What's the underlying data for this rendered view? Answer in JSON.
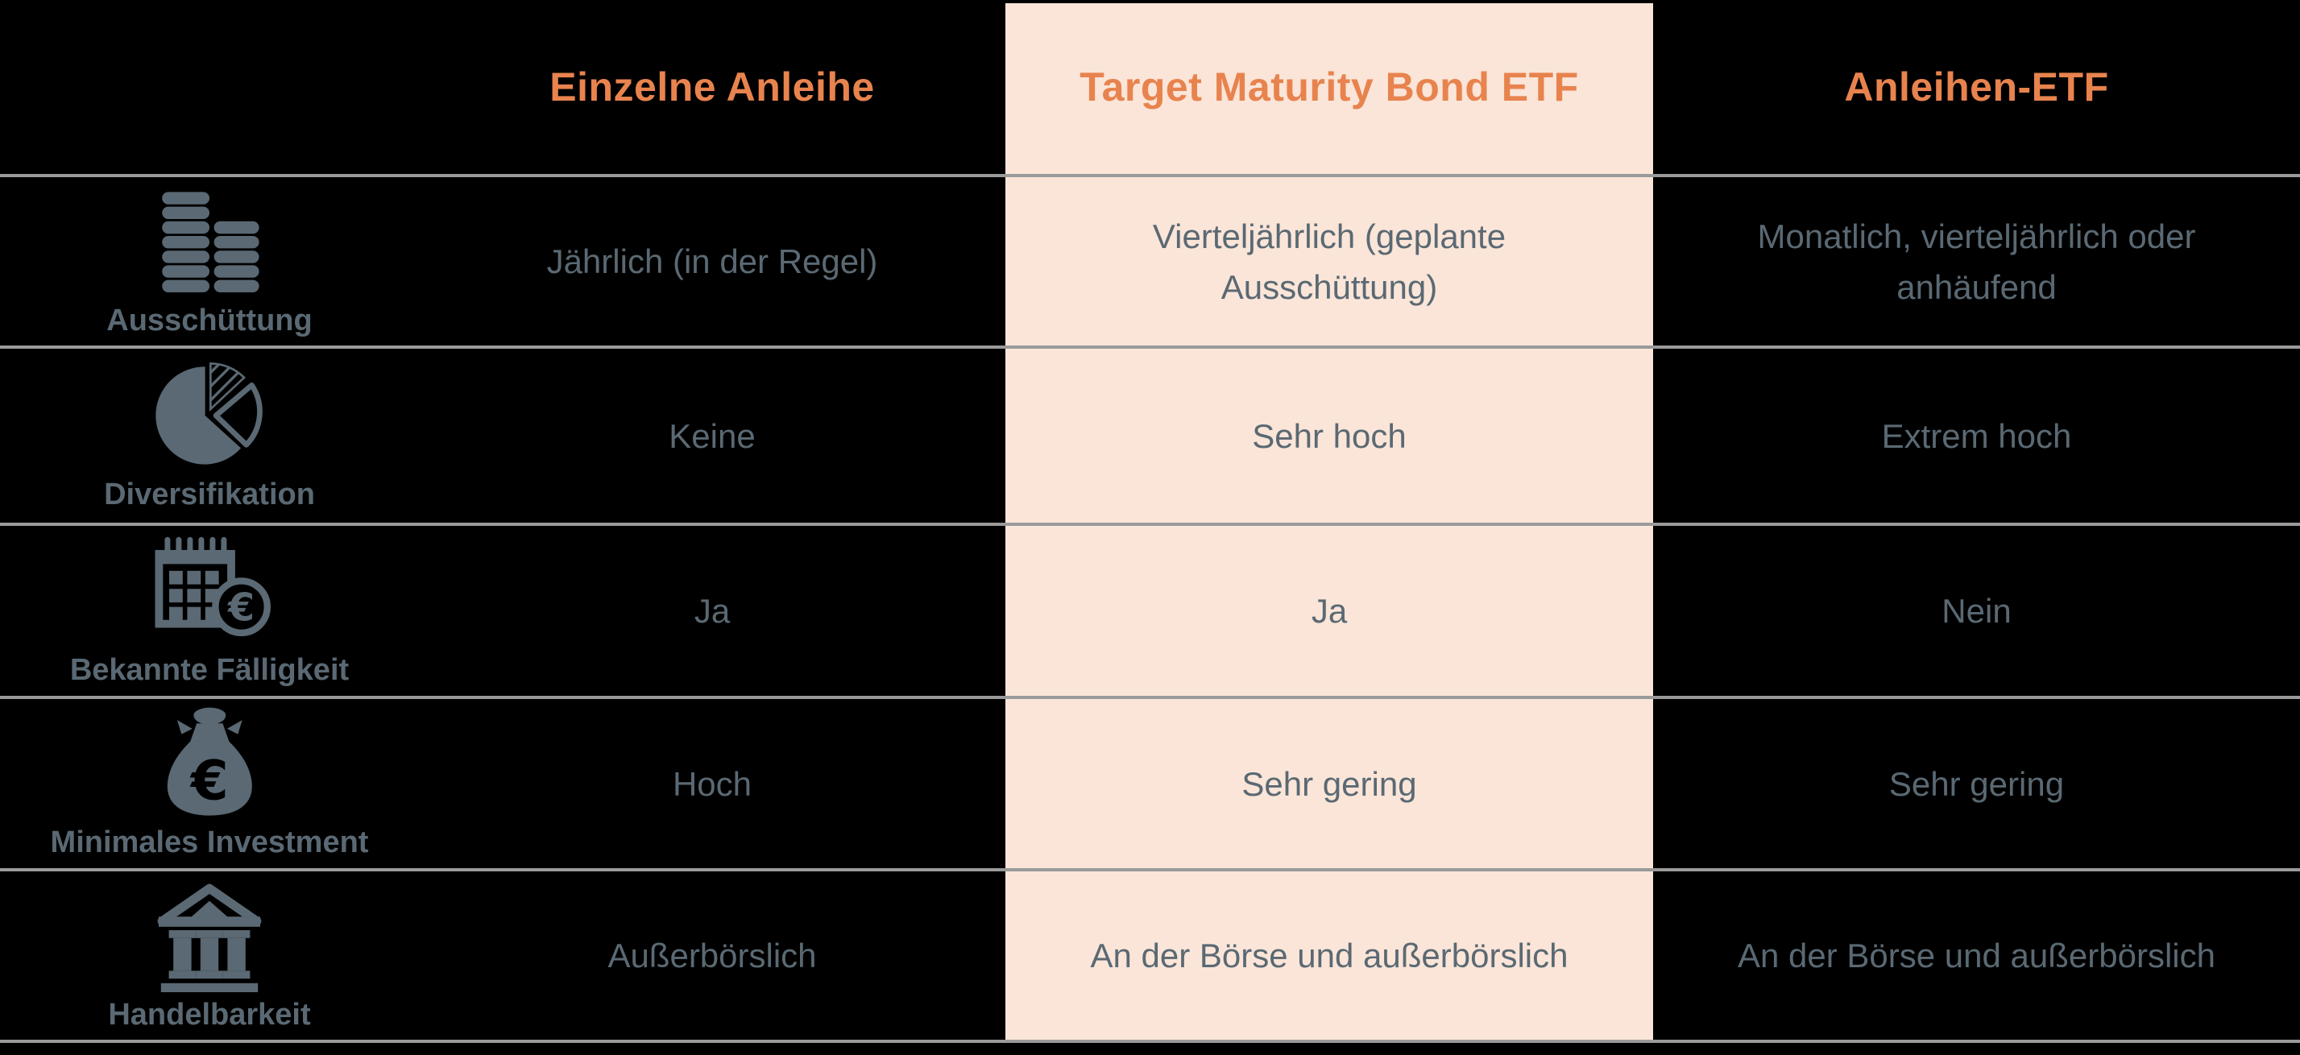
{
  "table": {
    "headers": [
      "Einzelne Anleihe",
      "Target Maturity Bond ETF",
      "Anleihen-ETF"
    ],
    "highlighted_column": "Target Maturity Bond ETF",
    "rows": [
      {
        "label": "Ausschüttung",
        "icon": "coin-stack",
        "cells": [
          "Jährlich (in der Regel)",
          "Vierteljährlich (geplante Ausschüttung)",
          "Monatlich, vierteljährlich oder anhäufend"
        ]
      },
      {
        "label": "Diversifikation",
        "icon": "pie-chart",
        "cells": [
          "Keine",
          "Sehr hoch",
          "Extrem hoch"
        ]
      },
      {
        "label": "Bekannte Fälligkeit",
        "icon": "calendar-euro",
        "cells": [
          "Ja",
          "Ja",
          "Nein"
        ]
      },
      {
        "label": "Minimales Investment",
        "icon": "money-bag-euro",
        "cells": [
          "Hoch",
          "Sehr gering",
          "Sehr gering"
        ]
      },
      {
        "label": "Handelbarkeit",
        "icon": "bank-building",
        "cells": [
          "Außerbörslich",
          "An der Börse und außerbörslich",
          "An der Börse und außerbörslich"
        ]
      }
    ]
  },
  "colors": {
    "background": "#000000",
    "header_text": "#E8834E",
    "highlight_column_background": "#FAE5D8",
    "body_text": "#5A6973",
    "divider_line": "#9A9A9A"
  }
}
